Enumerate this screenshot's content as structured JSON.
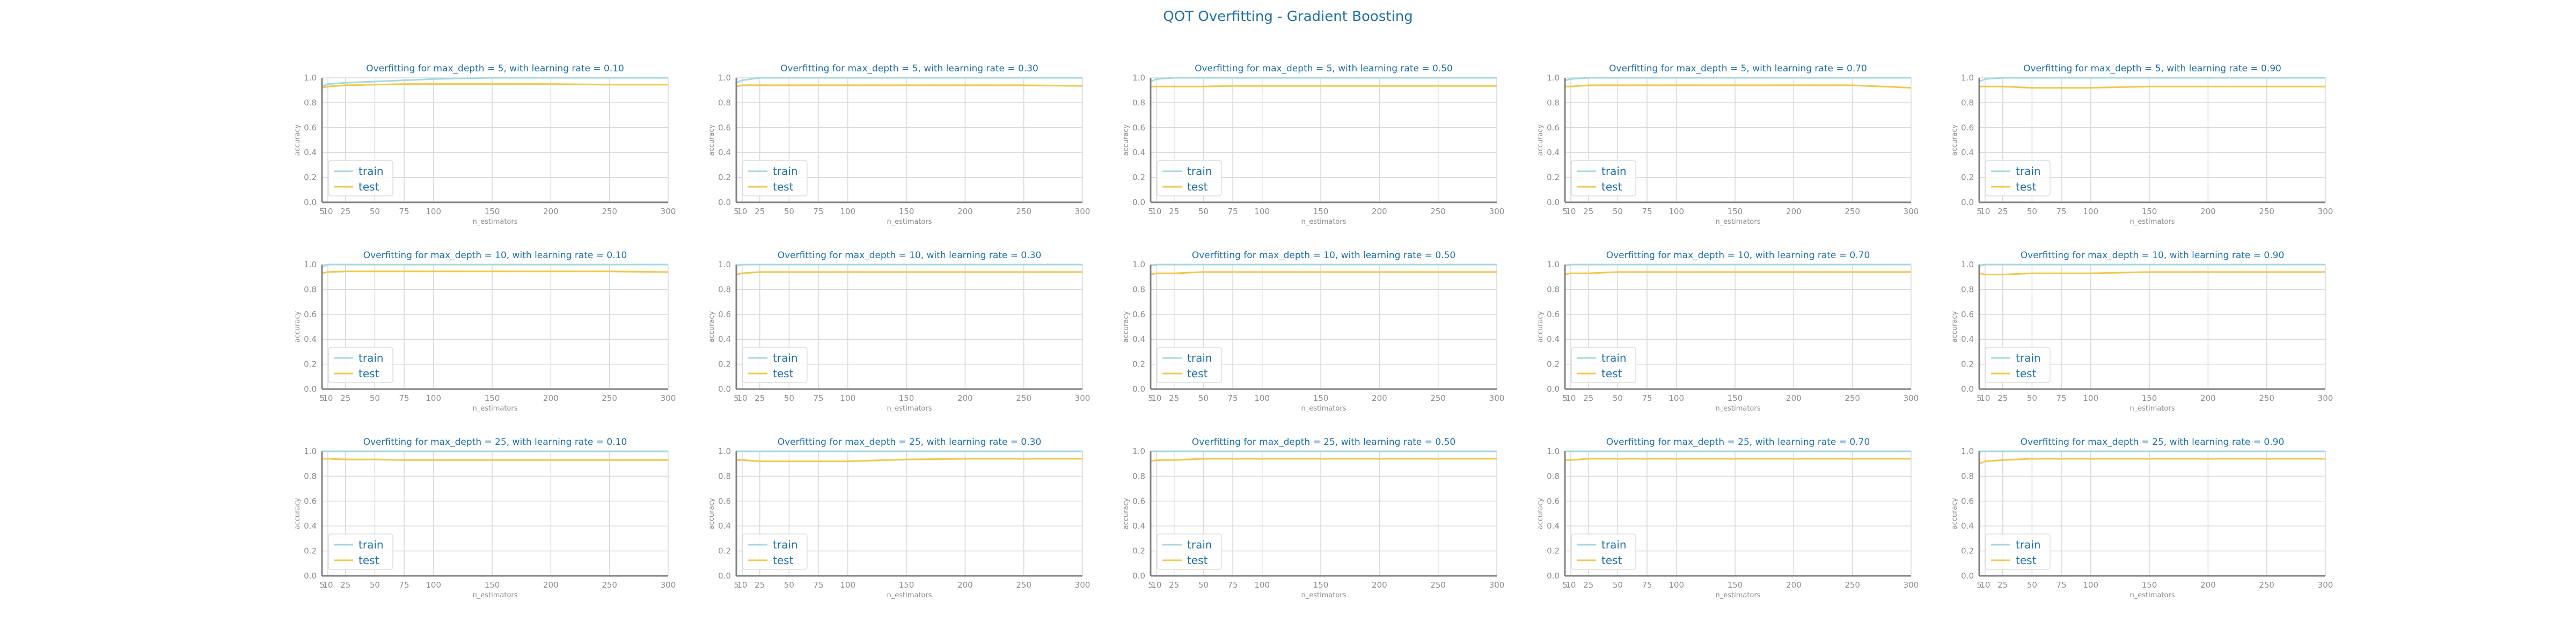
{
  "title": "QOT Overfitting - Gradient Boosting",
  "colors": {
    "train": "#a6d8df",
    "test": "#f2c84b",
    "title": "#1f6fa8",
    "axis": "#808080",
    "grid": "#d9d9d9",
    "tick": "#8c8c8c"
  },
  "chart_data": [
    {
      "type": "line",
      "title": "Overfitting for max_depth = 5, with learning rate = 0.10",
      "xlabel": "n_estimators",
      "ylabel": "accuracy",
      "ylim": [
        0,
        1
      ],
      "xlim": [
        5,
        300
      ],
      "grid": true,
      "legend": "lower-left",
      "x": [
        5,
        10,
        25,
        50,
        75,
        100,
        150,
        200,
        250,
        300
      ],
      "series": [
        {
          "name": "train",
          "values": [
            0.93,
            0.95,
            0.96,
            0.97,
            0.98,
            0.99,
            1.0,
            1.0,
            1.0,
            1.0
          ]
        },
        {
          "name": "test",
          "values": [
            0.92,
            0.93,
            0.94,
            0.945,
            0.95,
            0.95,
            0.95,
            0.95,
            0.945,
            0.945
          ]
        }
      ]
    },
    {
      "type": "line",
      "title": "Overfitting for max_depth = 5, with learning rate = 0.30",
      "xlabel": "n_estimators",
      "ylabel": "accuracy",
      "ylim": [
        0,
        1
      ],
      "xlim": [
        5,
        300
      ],
      "grid": true,
      "legend": "lower-left",
      "x": [
        5,
        10,
        25,
        50,
        75,
        100,
        150,
        200,
        250,
        300
      ],
      "series": [
        {
          "name": "train",
          "values": [
            0.96,
            0.98,
            1.0,
            1.0,
            1.0,
            1.0,
            1.0,
            1.0,
            1.0,
            1.0
          ]
        },
        {
          "name": "test",
          "values": [
            0.93,
            0.94,
            0.94,
            0.94,
            0.94,
            0.94,
            0.94,
            0.94,
            0.94,
            0.935
          ]
        }
      ]
    },
    {
      "type": "line",
      "title": "Overfitting for max_depth = 5, with learning rate = 0.50",
      "xlabel": "n_estimators",
      "ylabel": "accuracy",
      "ylim": [
        0,
        1
      ],
      "xlim": [
        5,
        300
      ],
      "grid": true,
      "legend": "lower-left",
      "x": [
        5,
        10,
        25,
        50,
        75,
        100,
        150,
        200,
        250,
        300
      ],
      "series": [
        {
          "name": "train",
          "values": [
            0.97,
            0.99,
            1.0,
            1.0,
            1.0,
            1.0,
            1.0,
            1.0,
            1.0,
            1.0
          ]
        },
        {
          "name": "test",
          "values": [
            0.93,
            0.93,
            0.93,
            0.93,
            0.935,
            0.935,
            0.935,
            0.935,
            0.935,
            0.935
          ]
        }
      ]
    },
    {
      "type": "line",
      "title": "Overfitting for max_depth = 5, with learning rate = 0.70",
      "xlabel": "n_estimators",
      "ylabel": "accuracy",
      "ylim": [
        0,
        1
      ],
      "xlim": [
        5,
        300
      ],
      "grid": true,
      "legend": "lower-left",
      "x": [
        5,
        10,
        25,
        50,
        75,
        100,
        150,
        200,
        250,
        300
      ],
      "series": [
        {
          "name": "train",
          "values": [
            0.98,
            0.99,
            1.0,
            1.0,
            1.0,
            1.0,
            1.0,
            1.0,
            1.0,
            1.0
          ]
        },
        {
          "name": "test",
          "values": [
            0.93,
            0.93,
            0.94,
            0.94,
            0.94,
            0.94,
            0.94,
            0.94,
            0.94,
            0.92
          ]
        }
      ]
    },
    {
      "type": "line",
      "title": "Overfitting for max_depth = 5, with learning rate = 0.90",
      "xlabel": "n_estimators",
      "ylabel": "accuracy",
      "ylim": [
        0,
        1
      ],
      "xlim": [
        5,
        300
      ],
      "grid": true,
      "legend": "lower-left",
      "x": [
        5,
        10,
        25,
        50,
        75,
        100,
        150,
        200,
        250,
        300
      ],
      "series": [
        {
          "name": "train",
          "values": [
            0.97,
            0.99,
            1.0,
            1.0,
            1.0,
            1.0,
            1.0,
            1.0,
            1.0,
            1.0
          ]
        },
        {
          "name": "test",
          "values": [
            0.93,
            0.93,
            0.93,
            0.92,
            0.92,
            0.92,
            0.93,
            0.93,
            0.93,
            0.93
          ]
        }
      ]
    },
    {
      "type": "line",
      "title": "Overfitting for max_depth = 10, with learning rate = 0.10",
      "xlabel": "n_estimators",
      "ylabel": "accuracy",
      "ylim": [
        0,
        1
      ],
      "xlim": [
        5,
        300
      ],
      "grid": true,
      "legend": "lower-left",
      "x": [
        5,
        10,
        25,
        50,
        75,
        100,
        150,
        200,
        250,
        300
      ],
      "series": [
        {
          "name": "train",
          "values": [
            0.98,
            1.0,
            1.0,
            1.0,
            1.0,
            1.0,
            1.0,
            1.0,
            1.0,
            1.0
          ]
        },
        {
          "name": "test",
          "values": [
            0.93,
            0.94,
            0.945,
            0.945,
            0.945,
            0.945,
            0.945,
            0.945,
            0.945,
            0.94
          ]
        }
      ]
    },
    {
      "type": "line",
      "title": "Overfitting for max_depth = 10, with learning rate = 0.30",
      "xlabel": "n_estimators",
      "ylabel": "accuracy",
      "ylim": [
        0,
        1
      ],
      "xlim": [
        5,
        300
      ],
      "grid": true,
      "legend": "lower-left",
      "x": [
        5,
        10,
        25,
        50,
        75,
        100,
        150,
        200,
        250,
        300
      ],
      "series": [
        {
          "name": "train",
          "values": [
            0.99,
            1.0,
            1.0,
            1.0,
            1.0,
            1.0,
            1.0,
            1.0,
            1.0,
            1.0
          ]
        },
        {
          "name": "test",
          "values": [
            0.92,
            0.93,
            0.94,
            0.94,
            0.94,
            0.94,
            0.94,
            0.94,
            0.94,
            0.94
          ]
        }
      ]
    },
    {
      "type": "line",
      "title": "Overfitting for max_depth = 10, with learning rate = 0.50",
      "xlabel": "n_estimators",
      "ylabel": "accuracy",
      "ylim": [
        0,
        1
      ],
      "xlim": [
        5,
        300
      ],
      "grid": true,
      "legend": "lower-left",
      "x": [
        5,
        10,
        25,
        50,
        75,
        100,
        150,
        200,
        250,
        300
      ],
      "series": [
        {
          "name": "train",
          "values": [
            0.99,
            1.0,
            1.0,
            1.0,
            1.0,
            1.0,
            1.0,
            1.0,
            1.0,
            1.0
          ]
        },
        {
          "name": "test",
          "values": [
            0.92,
            0.93,
            0.93,
            0.94,
            0.94,
            0.94,
            0.94,
            0.94,
            0.94,
            0.94
          ]
        }
      ]
    },
    {
      "type": "line",
      "title": "Overfitting for max_depth = 10, with learning rate = 0.70",
      "xlabel": "n_estimators",
      "ylabel": "accuracy",
      "ylim": [
        0,
        1
      ],
      "xlim": [
        5,
        300
      ],
      "grid": true,
      "legend": "lower-left",
      "x": [
        5,
        10,
        25,
        50,
        75,
        100,
        150,
        200,
        250,
        300
      ],
      "series": [
        {
          "name": "train",
          "values": [
            0.99,
            1.0,
            1.0,
            1.0,
            1.0,
            1.0,
            1.0,
            1.0,
            1.0,
            1.0
          ]
        },
        {
          "name": "test",
          "values": [
            0.92,
            0.93,
            0.93,
            0.94,
            0.94,
            0.94,
            0.94,
            0.94,
            0.94,
            0.94
          ]
        }
      ]
    },
    {
      "type": "line",
      "title": "Overfitting for max_depth = 10, with learning rate = 0.90",
      "xlabel": "n_estimators",
      "ylabel": "accuracy",
      "ylim": [
        0,
        1
      ],
      "xlim": [
        5,
        300
      ],
      "grid": true,
      "legend": "lower-left",
      "x": [
        5,
        10,
        25,
        50,
        75,
        100,
        150,
        200,
        250,
        300
      ],
      "series": [
        {
          "name": "train",
          "values": [
            0.99,
            1.0,
            1.0,
            1.0,
            1.0,
            1.0,
            1.0,
            1.0,
            1.0,
            1.0
          ]
        },
        {
          "name": "test",
          "values": [
            0.93,
            0.92,
            0.92,
            0.93,
            0.93,
            0.93,
            0.94,
            0.94,
            0.94,
            0.94
          ]
        }
      ]
    },
    {
      "type": "line",
      "title": "Overfitting for max_depth = 25, with learning rate = 0.10",
      "xlabel": "n_estimators",
      "ylabel": "accuracy",
      "ylim": [
        0,
        1
      ],
      "xlim": [
        5,
        300
      ],
      "grid": true,
      "legend": "lower-left",
      "x": [
        5,
        10,
        25,
        50,
        75,
        100,
        150,
        200,
        250,
        300
      ],
      "series": [
        {
          "name": "train",
          "values": [
            1.0,
            1.0,
            1.0,
            1.0,
            1.0,
            1.0,
            1.0,
            1.0,
            1.0,
            1.0
          ]
        },
        {
          "name": "test",
          "values": [
            0.94,
            0.94,
            0.935,
            0.935,
            0.93,
            0.93,
            0.93,
            0.93,
            0.93,
            0.93
          ]
        }
      ]
    },
    {
      "type": "line",
      "title": "Overfitting for max_depth = 25, with learning rate = 0.30",
      "xlabel": "n_estimators",
      "ylabel": "accuracy",
      "ylim": [
        0,
        1
      ],
      "xlim": [
        5,
        300
      ],
      "grid": true,
      "legend": "lower-left",
      "x": [
        5,
        10,
        25,
        50,
        75,
        100,
        150,
        200,
        250,
        300
      ],
      "series": [
        {
          "name": "train",
          "values": [
            1.0,
            1.0,
            1.0,
            1.0,
            1.0,
            1.0,
            1.0,
            1.0,
            1.0,
            1.0
          ]
        },
        {
          "name": "test",
          "values": [
            0.93,
            0.93,
            0.92,
            0.92,
            0.92,
            0.92,
            0.935,
            0.94,
            0.94,
            0.94
          ]
        }
      ]
    },
    {
      "type": "line",
      "title": "Overfitting for max_depth = 25, with learning rate = 0.50",
      "xlabel": "n_estimators",
      "ylabel": "accuracy",
      "ylim": [
        0,
        1
      ],
      "xlim": [
        5,
        300
      ],
      "grid": true,
      "legend": "lower-left",
      "x": [
        5,
        10,
        25,
        50,
        75,
        100,
        150,
        200,
        250,
        300
      ],
      "series": [
        {
          "name": "train",
          "values": [
            1.0,
            1.0,
            1.0,
            1.0,
            1.0,
            1.0,
            1.0,
            1.0,
            1.0,
            1.0
          ]
        },
        {
          "name": "test",
          "values": [
            0.92,
            0.93,
            0.93,
            0.94,
            0.94,
            0.94,
            0.94,
            0.94,
            0.94,
            0.94
          ]
        }
      ]
    },
    {
      "type": "line",
      "title": "Overfitting for max_depth = 25, with learning rate = 0.70",
      "xlabel": "n_estimators",
      "ylabel": "accuracy",
      "ylim": [
        0,
        1
      ],
      "xlim": [
        5,
        300
      ],
      "grid": true,
      "legend": "lower-left",
      "x": [
        5,
        10,
        25,
        50,
        75,
        100,
        150,
        200,
        250,
        300
      ],
      "series": [
        {
          "name": "train",
          "values": [
            1.0,
            1.0,
            1.0,
            1.0,
            1.0,
            1.0,
            1.0,
            1.0,
            1.0,
            1.0
          ]
        },
        {
          "name": "test",
          "values": [
            0.93,
            0.93,
            0.94,
            0.94,
            0.94,
            0.94,
            0.94,
            0.94,
            0.94,
            0.94
          ]
        }
      ]
    },
    {
      "type": "line",
      "title": "Overfitting for max_depth = 25, with learning rate = 0.90",
      "xlabel": "n_estimators",
      "ylabel": "accuracy",
      "ylim": [
        0,
        1
      ],
      "xlim": [
        5,
        300
      ],
      "grid": true,
      "legend": "lower-left",
      "x": [
        5,
        10,
        25,
        50,
        75,
        100,
        150,
        200,
        250,
        300
      ],
      "series": [
        {
          "name": "train",
          "values": [
            1.0,
            1.0,
            1.0,
            1.0,
            1.0,
            1.0,
            1.0,
            1.0,
            1.0,
            1.0
          ]
        },
        {
          "name": "test",
          "values": [
            0.9,
            0.92,
            0.93,
            0.94,
            0.94,
            0.94,
            0.94,
            0.94,
            0.94,
            0.94
          ]
        }
      ]
    }
  ]
}
